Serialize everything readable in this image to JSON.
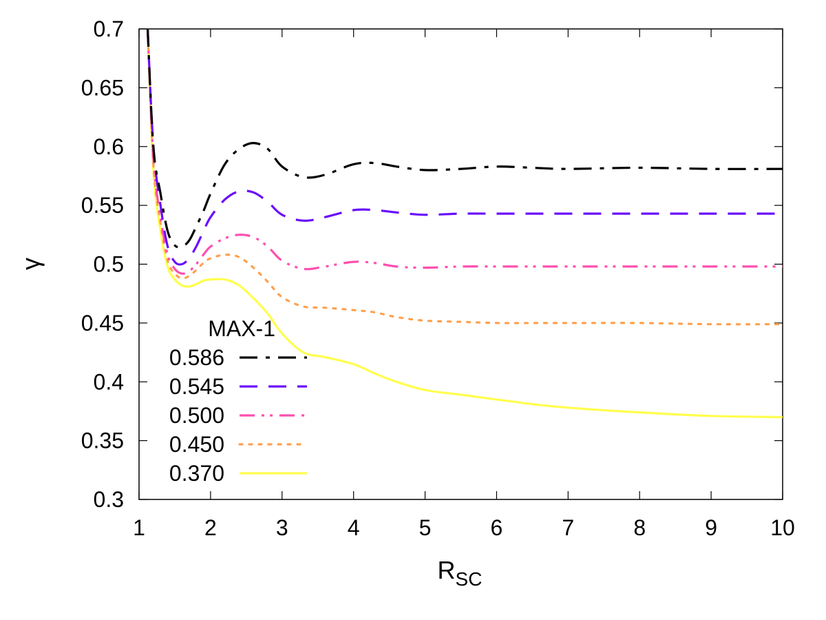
{
  "chart_data": {
    "type": "line",
    "title": "",
    "xlabel_main": "R",
    "xlabel_sub": "SC",
    "ylabel": "γ",
    "xlim": [
      1,
      10
    ],
    "ylim": [
      0.3,
      0.7
    ],
    "x_ticks": [
      1,
      2,
      3,
      4,
      5,
      6,
      7,
      8,
      9,
      10
    ],
    "x_tick_labels": [
      "1",
      "2",
      "3",
      "4",
      "5",
      "6",
      "7",
      "8",
      "9",
      "10"
    ],
    "y_ticks": [
      0.3,
      0.35,
      0.4,
      0.45,
      0.5,
      0.55,
      0.6,
      0.65,
      0.7
    ],
    "y_tick_labels": [
      "0.3",
      "0.35",
      "0.4",
      "0.45",
      "0.5",
      "0.55",
      "0.6",
      "0.65",
      "0.7"
    ],
    "grid": false,
    "legend_title": "MAX-1",
    "legend_position": "bottom-left",
    "series": [
      {
        "name": "0.586",
        "color": "#000000",
        "dash": "dash-dot",
        "x": [
          1.12,
          1.2,
          1.3,
          1.4,
          1.5,
          1.6,
          1.7,
          1.8,
          1.9,
          2.0,
          2.2,
          2.4,
          2.6,
          2.8,
          3.0,
          3.3,
          3.6,
          4.0,
          4.3,
          4.6,
          5.0,
          5.5,
          6.0,
          6.5,
          7.0,
          8.0,
          9.0,
          10.0
        ],
        "y": [
          0.7,
          0.6,
          0.56,
          0.528,
          0.516,
          0.515,
          0.52,
          0.532,
          0.545,
          0.56,
          0.585,
          0.598,
          0.603,
          0.598,
          0.583,
          0.574,
          0.576,
          0.585,
          0.586,
          0.583,
          0.58,
          0.581,
          0.583,
          0.582,
          0.581,
          0.582,
          0.581,
          0.581
        ]
      },
      {
        "name": "0.545",
        "color": "#6a0dfb",
        "dash": "dash",
        "x": [
          1.12,
          1.2,
          1.3,
          1.4,
          1.5,
          1.6,
          1.7,
          1.8,
          1.9,
          2.0,
          2.2,
          2.4,
          2.6,
          2.8,
          3.0,
          3.3,
          3.6,
          4.0,
          4.3,
          4.6,
          5.0,
          5.5,
          6.0,
          6.5,
          7.0,
          8.0,
          9.0,
          10.0
        ],
        "y": [
          0.7,
          0.6,
          0.55,
          0.515,
          0.502,
          0.5,
          0.505,
          0.515,
          0.528,
          0.54,
          0.555,
          0.562,
          0.561,
          0.553,
          0.542,
          0.537,
          0.54,
          0.546,
          0.546,
          0.544,
          0.542,
          0.543,
          0.543,
          0.543,
          0.543,
          0.543,
          0.543,
          0.543
        ]
      },
      {
        "name": "0.500",
        "color": "#ff4fb0",
        "dash": "dash-dot-dot",
        "x": [
          1.12,
          1.2,
          1.3,
          1.4,
          1.5,
          1.6,
          1.7,
          1.8,
          1.9,
          2.0,
          2.2,
          2.4,
          2.6,
          2.8,
          3.0,
          3.3,
          3.6,
          4.0,
          4.3,
          4.6,
          5.0,
          5.5,
          6.0,
          6.5,
          7.0,
          8.0,
          9.0,
          10.0
        ],
        "y": [
          0.7,
          0.59,
          0.54,
          0.508,
          0.496,
          0.492,
          0.494,
          0.5,
          0.508,
          0.515,
          0.522,
          0.525,
          0.523,
          0.515,
          0.503,
          0.496,
          0.498,
          0.502,
          0.501,
          0.498,
          0.497,
          0.498,
          0.498,
          0.498,
          0.498,
          0.498,
          0.498,
          0.498
        ]
      },
      {
        "name": "0.450",
        "color": "#ffa04d",
        "dash": "dot",
        "x": [
          1.12,
          1.2,
          1.3,
          1.4,
          1.5,
          1.6,
          1.7,
          1.8,
          1.9,
          2.0,
          2.2,
          2.4,
          2.6,
          2.8,
          3.0,
          3.3,
          3.6,
          4.0,
          4.3,
          4.6,
          5.0,
          5.5,
          6.0,
          6.5,
          7.0,
          8.0,
          9.0,
          10.0
        ],
        "y": [
          0.7,
          0.585,
          0.535,
          0.503,
          0.492,
          0.488,
          0.49,
          0.495,
          0.501,
          0.505,
          0.508,
          0.506,
          0.497,
          0.485,
          0.472,
          0.464,
          0.463,
          0.461,
          0.459,
          0.455,
          0.452,
          0.451,
          0.45,
          0.45,
          0.45,
          0.45,
          0.449,
          0.449
        ]
      },
      {
        "name": "0.370",
        "color": "#ffff4d",
        "dash": "solid",
        "x": [
          1.12,
          1.2,
          1.3,
          1.4,
          1.5,
          1.6,
          1.7,
          1.8,
          1.9,
          2.0,
          2.2,
          2.4,
          2.6,
          2.8,
          3.0,
          3.3,
          3.6,
          4.0,
          4.3,
          4.6,
          5.0,
          5.5,
          6.0,
          6.5,
          7.0,
          8.0,
          9.0,
          10.0
        ],
        "y": [
          0.7,
          0.58,
          0.528,
          0.498,
          0.487,
          0.482,
          0.481,
          0.483,
          0.486,
          0.487,
          0.487,
          0.482,
          0.471,
          0.458,
          0.441,
          0.425,
          0.421,
          0.415,
          0.407,
          0.4,
          0.393,
          0.389,
          0.385,
          0.381,
          0.378,
          0.374,
          0.371,
          0.37
        ]
      }
    ]
  }
}
